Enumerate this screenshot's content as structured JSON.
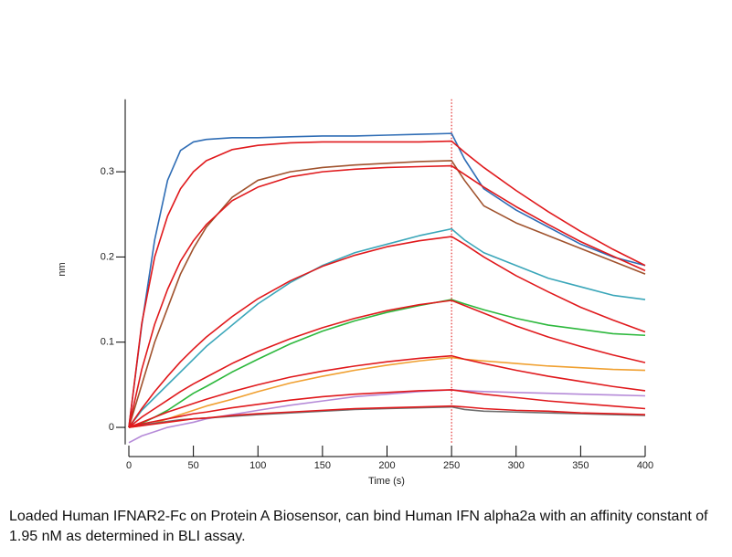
{
  "chart_data": {
    "type": "line",
    "x_label": "Time (s)",
    "y_label": "nm",
    "caption": "Loaded Human IFNAR2-Fc on Protein A Biosensor, can bind Human IFN alpha2a with an affinity constant of 1.95 nM as determined in BLI assay.",
    "x": [
      0,
      10,
      20,
      30,
      40,
      50,
      60,
      80,
      100,
      125,
      150,
      175,
      200,
      225,
      250,
      260,
      275,
      300,
      325,
      350,
      375,
      400
    ],
    "xlim": [
      0,
      400
    ],
    "xticks": [
      0,
      50,
      100,
      150,
      200,
      250,
      300,
      350,
      400
    ],
    "ylim": [
      -0.02,
      0.385
    ],
    "yticks": [
      0,
      0.1,
      0.2,
      0.3
    ],
    "vlines": [
      250
    ],
    "series": [
      {
        "color": "#2f6db5",
        "values": [
          0,
          0.12,
          0.22,
          0.29,
          0.325,
          0.335,
          0.338,
          0.34,
          0.34,
          0.341,
          0.342,
          0.342,
          0.343,
          0.344,
          0.345,
          0.315,
          0.28,
          0.255,
          0.235,
          0.215,
          0.2,
          0.19
        ]
      },
      {
        "color": "#a0522d",
        "values": [
          0,
          0.05,
          0.1,
          0.14,
          0.18,
          0.21,
          0.235,
          0.27,
          0.29,
          0.3,
          0.305,
          0.308,
          0.31,
          0.312,
          0.313,
          0.29,
          0.26,
          0.24,
          0.225,
          0.21,
          0.195,
          0.18
        ]
      },
      {
        "color": "#3aa6b9",
        "values": [
          0,
          0.02,
          0.035,
          0.05,
          0.065,
          0.08,
          0.095,
          0.12,
          0.145,
          0.17,
          0.19,
          0.205,
          0.215,
          0.225,
          0.233,
          0.22,
          0.205,
          0.19,
          0.175,
          0.165,
          0.155,
          0.15
        ]
      },
      {
        "color": "#2db83d",
        "values": [
          0,
          0.005,
          0.012,
          0.02,
          0.03,
          0.04,
          0.048,
          0.065,
          0.08,
          0.098,
          0.113,
          0.125,
          0.135,
          0.143,
          0.15,
          0.145,
          0.138,
          0.128,
          0.12,
          0.115,
          0.11,
          0.108
        ]
      },
      {
        "color": "#f0a030",
        "values": [
          0,
          0.002,
          0.005,
          0.01,
          0.015,
          0.02,
          0.025,
          0.033,
          0.042,
          0.052,
          0.06,
          0.067,
          0.073,
          0.078,
          0.082,
          0.08,
          0.078,
          0.075,
          0.072,
          0.07,
          0.068,
          0.067
        ]
      },
      {
        "color": "#b58ad8",
        "values": [
          -0.018,
          -0.01,
          -0.005,
          0.0,
          0.003,
          0.006,
          0.01,
          0.015,
          0.02,
          0.026,
          0.031,
          0.036,
          0.039,
          0.042,
          0.044,
          0.043,
          0.042,
          0.041,
          0.04,
          0.039,
          0.038,
          0.037
        ]
      },
      {
        "color": "#6e6e6e",
        "values": [
          0,
          0.003,
          0.005,
          0.007,
          0.009,
          0.01,
          0.011,
          0.013,
          0.015,
          0.017,
          0.019,
          0.021,
          0.022,
          0.023,
          0.024,
          0.021,
          0.019,
          0.018,
          0.017,
          0.016,
          0.015,
          0.014
        ]
      },
      {
        "color": "#e0191c",
        "values": [
          0,
          0.122,
          0.2,
          0.248,
          0.28,
          0.3,
          0.313,
          0.326,
          0.331,
          0.334,
          0.335,
          0.335,
          0.335,
          0.335,
          0.336,
          0.323,
          0.305,
          0.278,
          0.253,
          0.23,
          0.209,
          0.19
        ]
      },
      {
        "color": "#e0191c",
        "values": [
          0,
          0.068,
          0.121,
          0.162,
          0.195,
          0.219,
          0.238,
          0.266,
          0.282,
          0.294,
          0.3,
          0.303,
          0.305,
          0.306,
          0.307,
          0.297,
          0.282,
          0.259,
          0.238,
          0.218,
          0.201,
          0.184
        ]
      },
      {
        "color": "#e0191c",
        "values": [
          0,
          0.022,
          0.042,
          0.06,
          0.077,
          0.092,
          0.106,
          0.13,
          0.151,
          0.172,
          0.189,
          0.202,
          0.212,
          0.219,
          0.224,
          0.215,
          0.2,
          0.178,
          0.159,
          0.141,
          0.126,
          0.112
        ]
      },
      {
        "color": "#e0191c",
        "values": [
          0,
          0.012,
          0.022,
          0.032,
          0.042,
          0.051,
          0.059,
          0.075,
          0.089,
          0.104,
          0.117,
          0.128,
          0.137,
          0.144,
          0.149,
          0.143,
          0.134,
          0.119,
          0.106,
          0.095,
          0.085,
          0.076
        ]
      },
      {
        "color": "#e0191c",
        "values": [
          0,
          0.006,
          0.012,
          0.018,
          0.023,
          0.028,
          0.033,
          0.042,
          0.05,
          0.059,
          0.066,
          0.072,
          0.077,
          0.081,
          0.084,
          0.08,
          0.075,
          0.067,
          0.06,
          0.054,
          0.048,
          0.043
        ]
      },
      {
        "color": "#e0191c",
        "values": [
          0,
          0.004,
          0.007,
          0.01,
          0.013,
          0.016,
          0.018,
          0.023,
          0.027,
          0.032,
          0.036,
          0.039,
          0.041,
          0.043,
          0.044,
          0.042,
          0.039,
          0.035,
          0.031,
          0.028,
          0.025,
          0.022
        ]
      },
      {
        "color": "#e0191c",
        "values": [
          0,
          0.002,
          0.004,
          0.006,
          0.008,
          0.01,
          0.011,
          0.014,
          0.016,
          0.018,
          0.02,
          0.022,
          0.023,
          0.024,
          0.025,
          0.024,
          0.022,
          0.02,
          0.019,
          0.017,
          0.016,
          0.015
        ]
      }
    ]
  }
}
